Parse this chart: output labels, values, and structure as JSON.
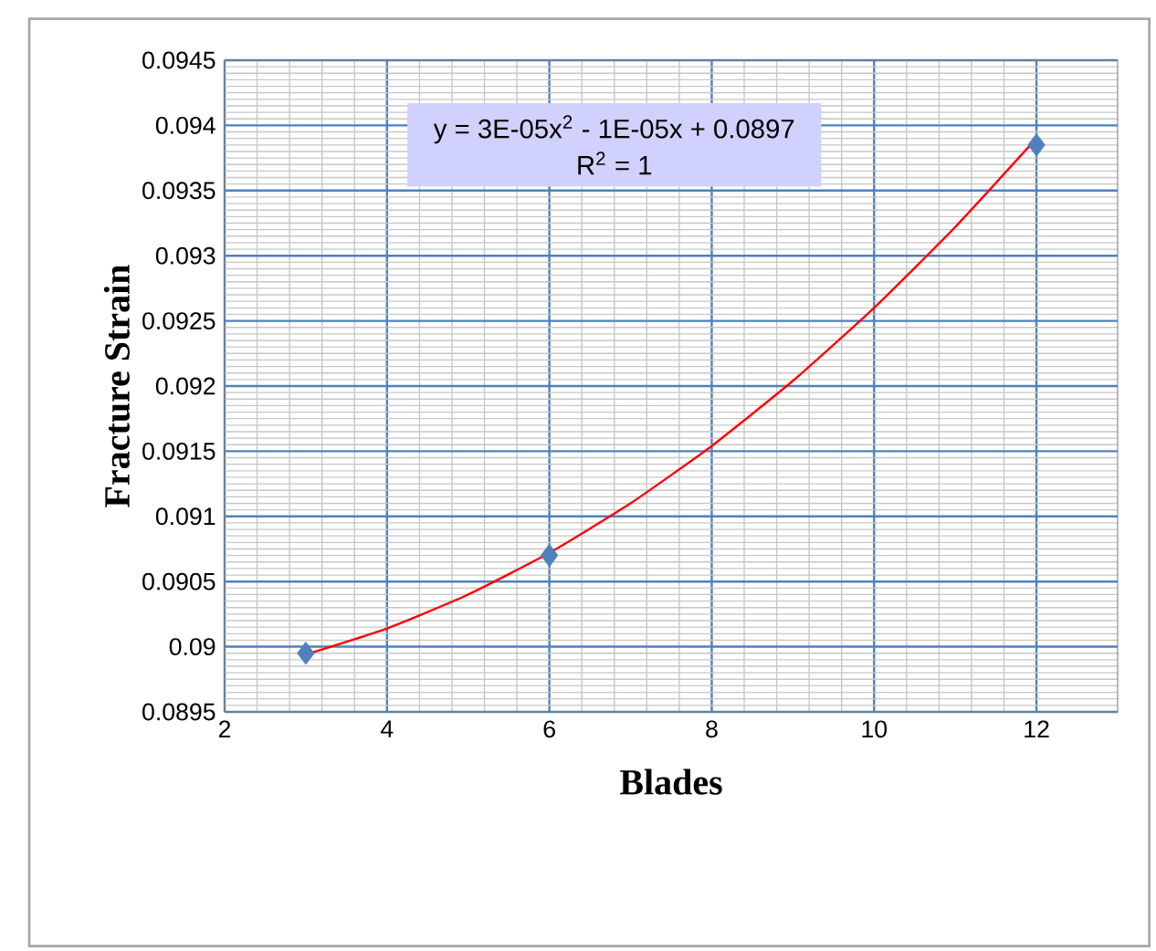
{
  "chart_data": {
    "type": "scatter",
    "xlabel": "Blades",
    "ylabel": "Fracture Strain",
    "annotations": [
      "y = 3E-05x$^{2}$ - 1E-05x + 0.0897",
      "R$^{2}$ = 1"
    ],
    "series": [
      {
        "color": "#4f81bd",
        "marker": "diamond",
        "x": [
          3,
          6,
          12
        ],
        "values": [
          0.08995,
          0.0907,
          0.09385
        ]
      },
      {
        "type": "line",
        "color": "#ff0000",
        "marker": "none",
        "x": [
          3,
          4,
          5,
          6,
          7,
          8,
          9,
          10,
          11,
          12
        ],
        "values": [
          0.08994,
          0.09014,
          0.0904,
          0.09072,
          0.0911,
          0.09154,
          0.09204,
          0.0926,
          0.09322,
          0.0939
        ]
      }
    ],
    "xlim": [
      2,
      13
    ],
    "xticks": [
      2,
      4,
      6,
      8,
      10,
      12
    ],
    "ylim": [
      0.0895,
      0.0945
    ],
    "yticks": [
      0.0895,
      0.09,
      0.0905,
      0.091,
      0.0915,
      0.092,
      0.0925,
      0.093,
      0.0935,
      0.094,
      0.0945
    ],
    "grid": true
  }
}
